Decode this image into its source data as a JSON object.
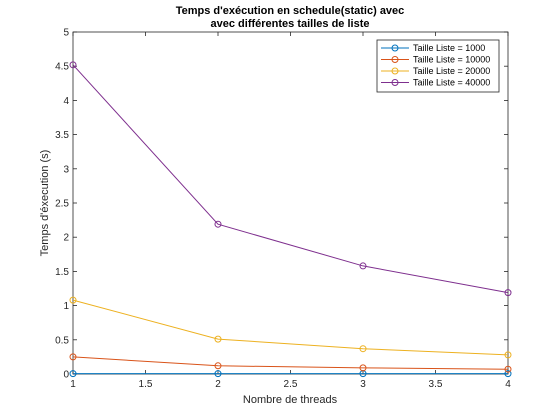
{
  "chart_data": {
    "type": "line",
    "title": [
      "Temps d'exécution en schedule(static) avec",
      "avec différentes tailles de liste"
    ],
    "xlabel": "Nombre de threads",
    "ylabel": "Temps d'éxecution (s)",
    "xlim": [
      1,
      4
    ],
    "ylim": [
      0,
      5
    ],
    "xticks": [
      1,
      1.5,
      2,
      2.5,
      3,
      3.5,
      4
    ],
    "xtick_labels": [
      "1",
      "1.5",
      "2",
      "2.5",
      "3",
      "3.5",
      "4"
    ],
    "yticks": [
      0,
      0.5,
      1,
      1.5,
      2,
      2.5,
      3,
      3.5,
      4,
      4.5,
      5
    ],
    "ytick_labels": [
      "0",
      "0.5",
      "1",
      "1.5",
      "2",
      "2.5",
      "3",
      "3.5",
      "4",
      "4.5",
      "5"
    ],
    "grid": false,
    "legend_position": "top-right",
    "x": [
      1,
      2,
      3,
      4
    ],
    "series": [
      {
        "name": "Taille Liste = 1000",
        "values": [
          0.005,
          0.005,
          0.005,
          0.005
        ],
        "color": "#0072BD"
      },
      {
        "name": "Taille Liste = 10000",
        "values": [
          0.25,
          0.12,
          0.09,
          0.07
        ],
        "color": "#D95319"
      },
      {
        "name": "Taille Liste = 20000",
        "values": [
          1.08,
          0.51,
          0.37,
          0.28
        ],
        "color": "#EDB120"
      },
      {
        "name": "Taille Liste = 40000",
        "values": [
          4.52,
          2.19,
          1.58,
          1.19
        ],
        "color": "#7E2F8E"
      }
    ]
  }
}
